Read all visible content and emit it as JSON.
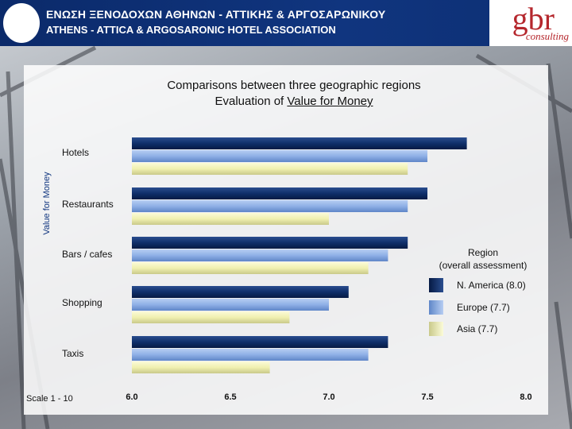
{
  "header": {
    "assoc_greek": "ΕΝΩΣΗ ΞΕΝΟΔΟΧΩΝ ΑΘΗΝΩΝ - ΑΤΤΙΚΗΣ & ΑΡΓΟΣΑΡΩΝΙΚΟΥ",
    "assoc_english": "ATHENS - ATTICA & ARGOSARONIC HOTEL ASSOCIATION",
    "brand": "gbr",
    "brand_sub": "consulting"
  },
  "colors": {
    "header_bg": "#10357f",
    "brand_red": "#b5272d",
    "n_america": "#0f2f6a",
    "europe": "#7fa3dd",
    "asia": "#f0f0b0"
  },
  "chart_data": {
    "type": "bar",
    "orientation": "horizontal",
    "title": "Comparisons between three geographic regions",
    "subtitle_prefix": "Evaluation of ",
    "subtitle_underlined": "Value for Money",
    "ylabel": "Value for Money",
    "scale_note": "Scale 1 - 10",
    "categories": [
      "Hotels",
      "Restaurants",
      "Bars / cafes",
      "Shopping",
      "Taxis"
    ],
    "xlim": [
      6.0,
      8.0
    ],
    "xticks": [
      "6.0",
      "6.5",
      "7.0",
      "7.5",
      "8.0"
    ],
    "xtick_values": [
      6.0,
      6.5,
      7.0,
      7.5,
      8.0
    ],
    "legend_title_1": "Region",
    "legend_title_2": "(overall assessment)",
    "legend_position": "right",
    "series": [
      {
        "name": "N. America (8.0)",
        "values": [
          7.7,
          7.5,
          7.4,
          7.1,
          7.3
        ]
      },
      {
        "name": "Europe (7.7)",
        "values": [
          7.5,
          7.4,
          7.3,
          7.0,
          7.2
        ]
      },
      {
        "name": "Asia (7.7)",
        "values": [
          7.4,
          7.0,
          7.2,
          6.8,
          6.7
        ]
      }
    ]
  }
}
